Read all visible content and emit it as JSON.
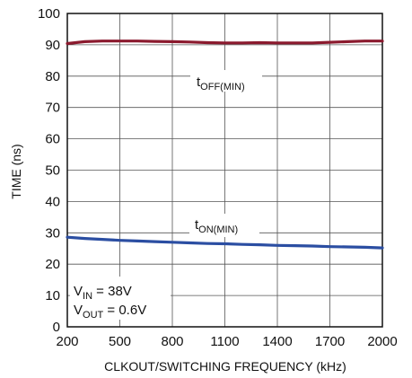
{
  "chart_data": {
    "type": "line",
    "title": "",
    "xlabel": "CLKOUT/SWITCHING FREQUENCY (kHz)",
    "ylabel": "TIME (ns)",
    "xlim": [
      200,
      2000
    ],
    "ylim": [
      0,
      100
    ],
    "xticks": [
      200,
      500,
      800,
      1100,
      1400,
      1700,
      2000
    ],
    "yticks": [
      0,
      10,
      20,
      30,
      40,
      50,
      60,
      70,
      80,
      90,
      100
    ],
    "grid": true,
    "series": [
      {
        "name": "tOFF(MIN)",
        "label_main": "t",
        "label_sub": "OFF(MIN)",
        "color": "#8b1a2e",
        "x": [
          200,
          300,
          400,
          500,
          600,
          700,
          800,
          900,
          1000,
          1100,
          1200,
          1300,
          1400,
          1500,
          1600,
          1700,
          1800,
          1900,
          2000
        ],
        "y": [
          90.4,
          91.0,
          91.2,
          91.2,
          91.2,
          91.1,
          91.0,
          90.9,
          90.7,
          90.6,
          90.6,
          90.7,
          90.6,
          90.6,
          90.6,
          90.8,
          91.0,
          91.2,
          91.2
        ]
      },
      {
        "name": "tON(MIN)",
        "label_main": "t",
        "label_sub": "ON(MIN)",
        "color": "#2b4ea2",
        "x": [
          200,
          300,
          400,
          500,
          600,
          700,
          800,
          900,
          1000,
          1100,
          1200,
          1300,
          1400,
          1500,
          1600,
          1700,
          1800,
          1900,
          2000
        ],
        "y": [
          28.6,
          28.2,
          27.9,
          27.6,
          27.4,
          27.2,
          27.0,
          26.8,
          26.6,
          26.5,
          26.3,
          26.2,
          26.0,
          25.9,
          25.8,
          25.6,
          25.5,
          25.4,
          25.2
        ]
      }
    ],
    "conditions": {
      "vin_main": "V",
      "vin_sub": "IN",
      "vin_value": " = 38V",
      "vout_main": "V",
      "vout_sub": "OUT",
      "vout_value": " = 0.6V"
    }
  }
}
